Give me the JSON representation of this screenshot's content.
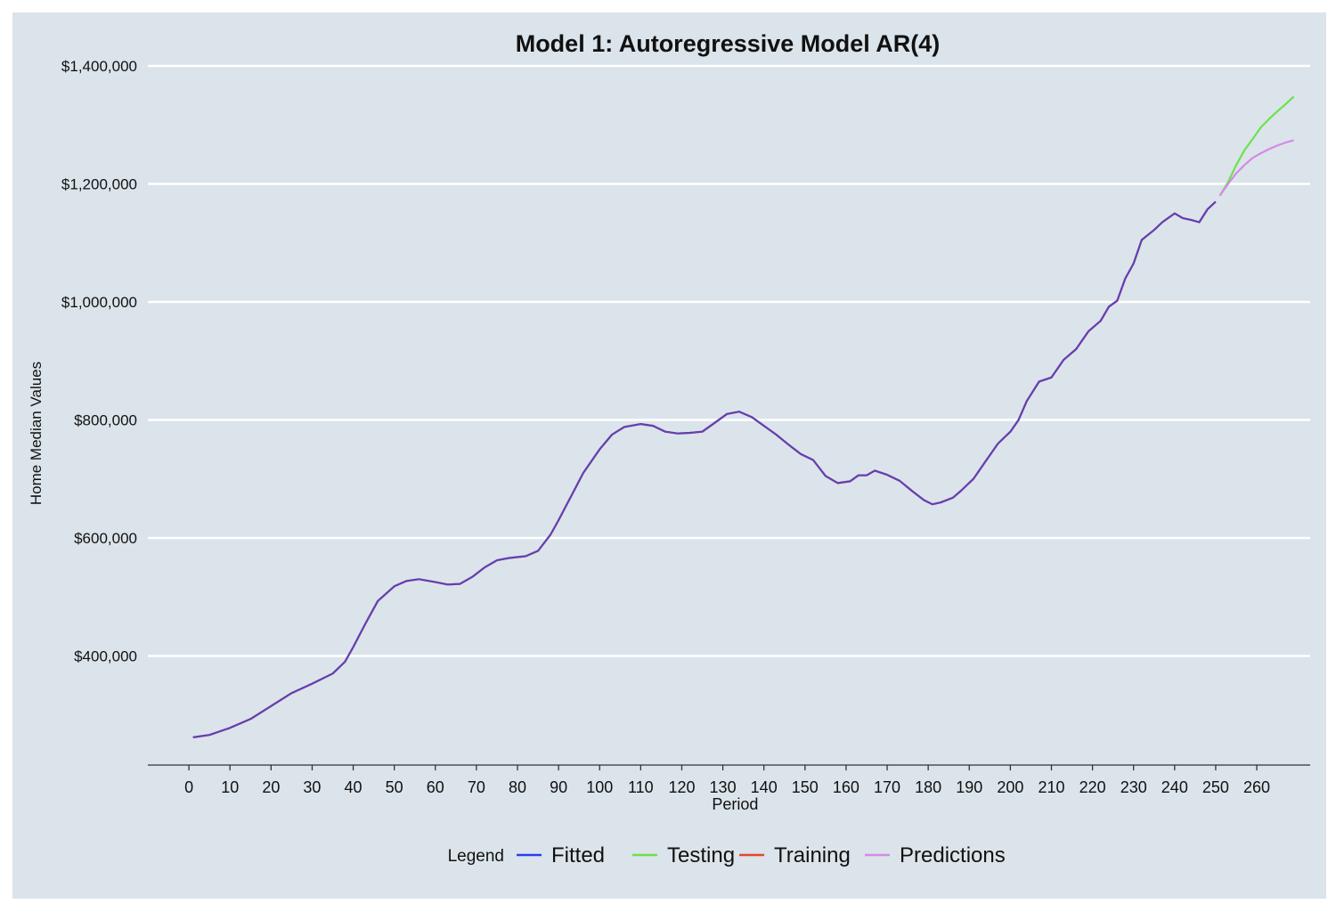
{
  "chart_data": {
    "type": "line",
    "title": "Model 1: Autoregressive Model AR(4)",
    "xlabel": "Period",
    "ylabel": "Home Median Values",
    "xlim": [
      -10,
      273
    ],
    "ylim": [
      215000,
      1400000
    ],
    "x_ticks": [
      0,
      10,
      20,
      30,
      40,
      50,
      60,
      70,
      80,
      90,
      100,
      110,
      120,
      130,
      140,
      150,
      160,
      170,
      180,
      190,
      200,
      210,
      220,
      230,
      240,
      250,
      260
    ],
    "y_ticks": [
      {
        "value": 400000,
        "label": "$400,000"
      },
      {
        "value": 600000,
        "label": "$600,000"
      },
      {
        "value": 800000,
        "label": "$800,000"
      },
      {
        "value": 1000000,
        "label": "$1,000,000"
      },
      {
        "value": 1200000,
        "label": "$1,200,000"
      },
      {
        "value": 1400000,
        "label": "$1,400,000"
      }
    ],
    "grid": "horizontal",
    "legend": {
      "title": "Legend",
      "placement": "bottom"
    },
    "series": [
      {
        "name": "Fitted",
        "color": "#2b3cf0",
        "points": [
          [
            1,
            262000
          ],
          [
            5,
            266000
          ],
          [
            10,
            278000
          ],
          [
            15,
            293000
          ],
          [
            20,
            315000
          ],
          [
            25,
            337000
          ],
          [
            30,
            353000
          ],
          [
            35,
            370000
          ],
          [
            38,
            390000
          ],
          [
            40,
            415000
          ],
          [
            43,
            455000
          ],
          [
            46,
            493000
          ],
          [
            50,
            518000
          ],
          [
            53,
            527000
          ],
          [
            56,
            530000
          ],
          [
            60,
            525000
          ],
          [
            63,
            521000
          ],
          [
            66,
            522000
          ],
          [
            69,
            534000
          ],
          [
            72,
            550000
          ],
          [
            75,
            562000
          ],
          [
            78,
            566000
          ],
          [
            82,
            569000
          ],
          [
            85,
            578000
          ],
          [
            88,
            605000
          ],
          [
            90,
            630000
          ],
          [
            93,
            670000
          ],
          [
            96,
            710000
          ],
          [
            100,
            750000
          ],
          [
            103,
            775000
          ],
          [
            106,
            788000
          ],
          [
            110,
            793000
          ],
          [
            113,
            790000
          ],
          [
            116,
            780000
          ],
          [
            119,
            777000
          ],
          [
            122,
            778000
          ],
          [
            125,
            780000
          ],
          [
            128,
            795000
          ],
          [
            131,
            810000
          ],
          [
            134,
            814000
          ],
          [
            137,
            805000
          ],
          [
            140,
            790000
          ],
          [
            143,
            775000
          ],
          [
            146,
            758000
          ],
          [
            149,
            742000
          ],
          [
            152,
            732000
          ],
          [
            155,
            705000
          ],
          [
            158,
            693000
          ],
          [
            161,
            696000
          ],
          [
            163,
            706000
          ],
          [
            165,
            706000
          ],
          [
            167,
            714000
          ],
          [
            170,
            707000
          ],
          [
            173,
            697000
          ],
          [
            176,
            680000
          ],
          [
            179,
            664000
          ],
          [
            181,
            657000
          ],
          [
            183,
            660000
          ],
          [
            186,
            668000
          ],
          [
            188,
            680000
          ],
          [
            191,
            700000
          ],
          [
            194,
            730000
          ],
          [
            197,
            760000
          ],
          [
            200,
            780000
          ],
          [
            202,
            800000
          ],
          [
            204,
            832000
          ],
          [
            207,
            865000
          ],
          [
            210,
            872000
          ],
          [
            213,
            902000
          ],
          [
            216,
            920000
          ],
          [
            219,
            950000
          ],
          [
            222,
            968000
          ],
          [
            224,
            992000
          ],
          [
            226,
            1002000
          ],
          [
            228,
            1040000
          ],
          [
            230,
            1065000
          ],
          [
            232,
            1105000
          ],
          [
            235,
            1122000
          ],
          [
            237,
            1135000
          ],
          [
            240,
            1150000
          ],
          [
            242,
            1142000
          ],
          [
            244,
            1139000
          ],
          [
            246,
            1135000
          ],
          [
            248,
            1157000
          ],
          [
            250,
            1170000
          ]
        ]
      },
      {
        "name": "Testing",
        "color": "#6ee04f",
        "points": [
          [
            251,
            1180000
          ],
          [
            253,
            1203000
          ],
          [
            255,
            1232000
          ],
          [
            257,
            1257000
          ],
          [
            259,
            1276000
          ],
          [
            261,
            1296000
          ],
          [
            263,
            1310000
          ],
          [
            265,
            1323000
          ],
          [
            267,
            1335000
          ],
          [
            269,
            1348000
          ]
        ]
      },
      {
        "name": "Training",
        "color": "#e5462a",
        "points": [
          [
            1,
            262000
          ],
          [
            5,
            266000
          ],
          [
            10,
            278000
          ],
          [
            15,
            293000
          ],
          [
            20,
            315000
          ],
          [
            25,
            337000
          ],
          [
            30,
            353000
          ],
          [
            35,
            370000
          ],
          [
            38,
            390000
          ],
          [
            40,
            415000
          ],
          [
            43,
            455000
          ],
          [
            46,
            493000
          ],
          [
            50,
            518000
          ],
          [
            53,
            527000
          ],
          [
            56,
            530000
          ],
          [
            60,
            525000
          ],
          [
            63,
            521000
          ],
          [
            66,
            522000
          ],
          [
            69,
            534000
          ],
          [
            72,
            550000
          ],
          [
            75,
            562000
          ],
          [
            78,
            566000
          ],
          [
            82,
            569000
          ],
          [
            85,
            578000
          ],
          [
            88,
            605000
          ],
          [
            90,
            630000
          ],
          [
            93,
            670000
          ],
          [
            96,
            710000
          ],
          [
            100,
            750000
          ],
          [
            103,
            775000
          ],
          [
            106,
            788000
          ],
          [
            110,
            793000
          ],
          [
            113,
            790000
          ],
          [
            116,
            780000
          ],
          [
            119,
            777000
          ],
          [
            122,
            778000
          ],
          [
            125,
            780000
          ],
          [
            128,
            795000
          ],
          [
            131,
            810000
          ],
          [
            134,
            814000
          ],
          [
            137,
            805000
          ],
          [
            140,
            790000
          ],
          [
            143,
            775000
          ],
          [
            146,
            758000
          ],
          [
            149,
            742000
          ],
          [
            152,
            732000
          ],
          [
            155,
            705000
          ],
          [
            158,
            693000
          ],
          [
            161,
            696000
          ],
          [
            163,
            706000
          ],
          [
            165,
            706000
          ],
          [
            167,
            714000
          ],
          [
            170,
            707000
          ],
          [
            173,
            697000
          ],
          [
            176,
            680000
          ],
          [
            179,
            664000
          ],
          [
            181,
            657000
          ],
          [
            183,
            660000
          ],
          [
            186,
            668000
          ],
          [
            188,
            680000
          ],
          [
            191,
            700000
          ],
          [
            194,
            730000
          ],
          [
            197,
            760000
          ],
          [
            200,
            780000
          ],
          [
            202,
            800000
          ],
          [
            204,
            832000
          ],
          [
            207,
            865000
          ],
          [
            210,
            872000
          ],
          [
            213,
            902000
          ],
          [
            216,
            920000
          ],
          [
            219,
            950000
          ],
          [
            222,
            968000
          ],
          [
            224,
            992000
          ],
          [
            226,
            1002000
          ],
          [
            228,
            1040000
          ],
          [
            230,
            1065000
          ],
          [
            232,
            1105000
          ],
          [
            235,
            1122000
          ],
          [
            237,
            1135000
          ],
          [
            240,
            1150000
          ],
          [
            242,
            1142000
          ],
          [
            244,
            1139000
          ],
          [
            246,
            1135000
          ],
          [
            248,
            1157000
          ],
          [
            250,
            1170000
          ]
        ]
      },
      {
        "name": "Predictions",
        "color": "#d58ae6",
        "points": [
          [
            251,
            1180000
          ],
          [
            253,
            1200000
          ],
          [
            255,
            1218000
          ],
          [
            257,
            1232000
          ],
          [
            259,
            1244000
          ],
          [
            261,
            1252000
          ],
          [
            263,
            1259000
          ],
          [
            265,
            1265000
          ],
          [
            267,
            1270000
          ],
          [
            269,
            1274000
          ]
        ]
      }
    ]
  }
}
